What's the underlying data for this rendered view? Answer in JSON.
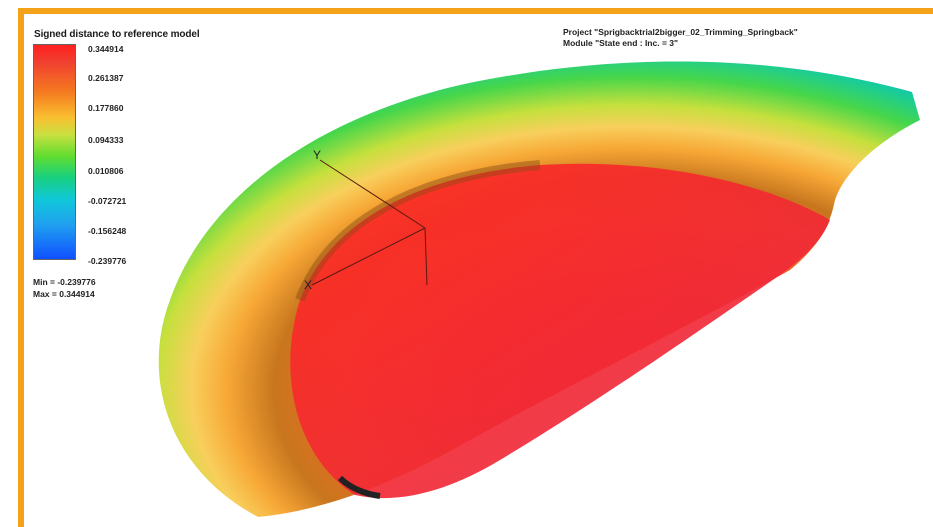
{
  "legend": {
    "title": "Signed distance to reference model",
    "ticks": [
      "0.344914",
      "0.261387",
      "0.177860",
      "0.094333",
      "0.010806",
      "-0.072721",
      "-0.156248",
      "-0.239776"
    ],
    "min_text": "Min = -0.239776",
    "max_text": "Max =  0.344914"
  },
  "project": {
    "line1": "Project \"Sprigbacktrial2bigger_02_Trimming_Springback\"",
    "line2": "Module \"State end : Inc. = 3\""
  },
  "axes": {
    "y_label": "Y",
    "x_label": "X"
  },
  "colors": {
    "frame": "#f3a21a"
  }
}
